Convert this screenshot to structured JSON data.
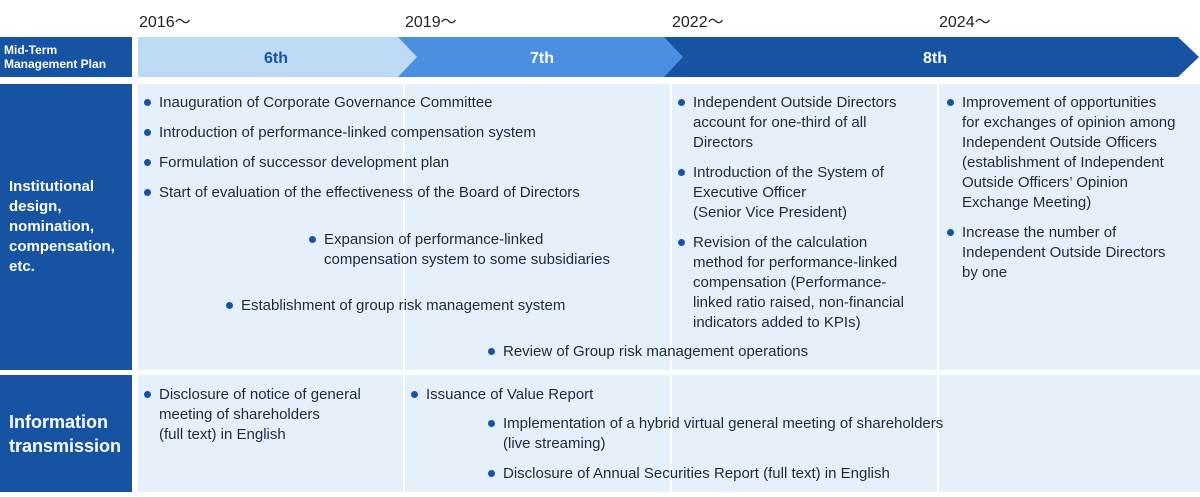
{
  "years": [
    "2016～",
    "2019～",
    "2022～",
    "2024～"
  ],
  "header": {
    "label": "Mid-Term\nManagement Plan"
  },
  "plans": [
    "6th",
    "7th",
    "8th"
  ],
  "colors": {
    "navy": "#1653a2",
    "plan6": "#bfdaf5",
    "plan7": "#4a8fe0",
    "plan8": "#1653a2",
    "cell": "#e6f0fb"
  },
  "rows": {
    "institutional": {
      "label": "Institutional\ndesign,\nnomination,\ncompensation,\n etc.",
      "col2016": [
        "Inauguration of Corporate Governance Committee",
        "Introduction of performance-linked compensation system",
        "Formulation of successor development plan",
        "Start of evaluation of the effectiveness of the Board of Directors"
      ],
      "expansion": "Expansion of performance-linked\ncompensation system to some subsidiaries",
      "risk_system": "Establishment of group risk management system",
      "risk_review": "Review of Group risk management operations",
      "col2022": [
        "Independent Outside Directors\naccount for one-third of all\nDirectors",
        "Introduction of the System of\nExecutive Officer\n(Senior Vice President)",
        "Revision of the calculation\nmethod for performance-linked\ncompensation (Performance-\nlinked ratio raised, non-financial\nindicators added to KPIs)"
      ],
      "col2024": [
        "Improvement of opportunities\nfor exchanges of opinion among\nIndependent Outside Officers\n(establishment of Independent\nOutside Officers’ Opinion\nExchange Meeting)",
        "Increase the number of\nIndependent Outside Directors\nby one"
      ]
    },
    "information": {
      "label": "Information\ntransmission",
      "disclosure_notice": "Disclosure of notice of general\nmeeting of shareholders\n(full text) in English",
      "value_report": "Issuance of Value Report",
      "hybrid_meeting": "Implementation of a hybrid virtual general meeting of shareholders\n(live streaming)",
      "annual_report": "Disclosure of Annual Securities Report (full text) in English"
    }
  }
}
